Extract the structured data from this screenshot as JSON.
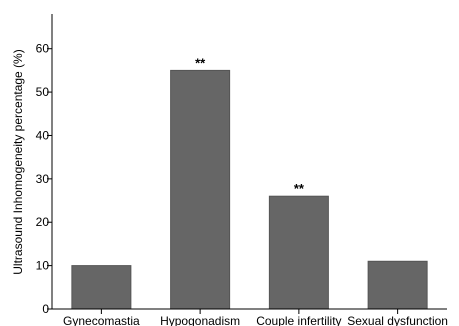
{
  "chart_data": {
    "type": "bar",
    "title": "",
    "xlabel": "",
    "ylabel": "Ultrasound Inhomogeneity percentage (%)",
    "categories": [
      "Gynecomastia",
      "Hypogonadism",
      "Couple infertility",
      "Sexual dysfunction"
    ],
    "values": [
      10,
      55,
      26,
      11
    ],
    "annotations": [
      "",
      "**",
      "**",
      ""
    ],
    "ylim": [
      0,
      68
    ],
    "yticks": [
      0,
      10,
      20,
      30,
      40,
      50,
      60
    ],
    "grid": false,
    "legend": "none",
    "colors": {
      "bar": "#666666",
      "bar_edge": "#555555",
      "axis": "#000000"
    }
  }
}
